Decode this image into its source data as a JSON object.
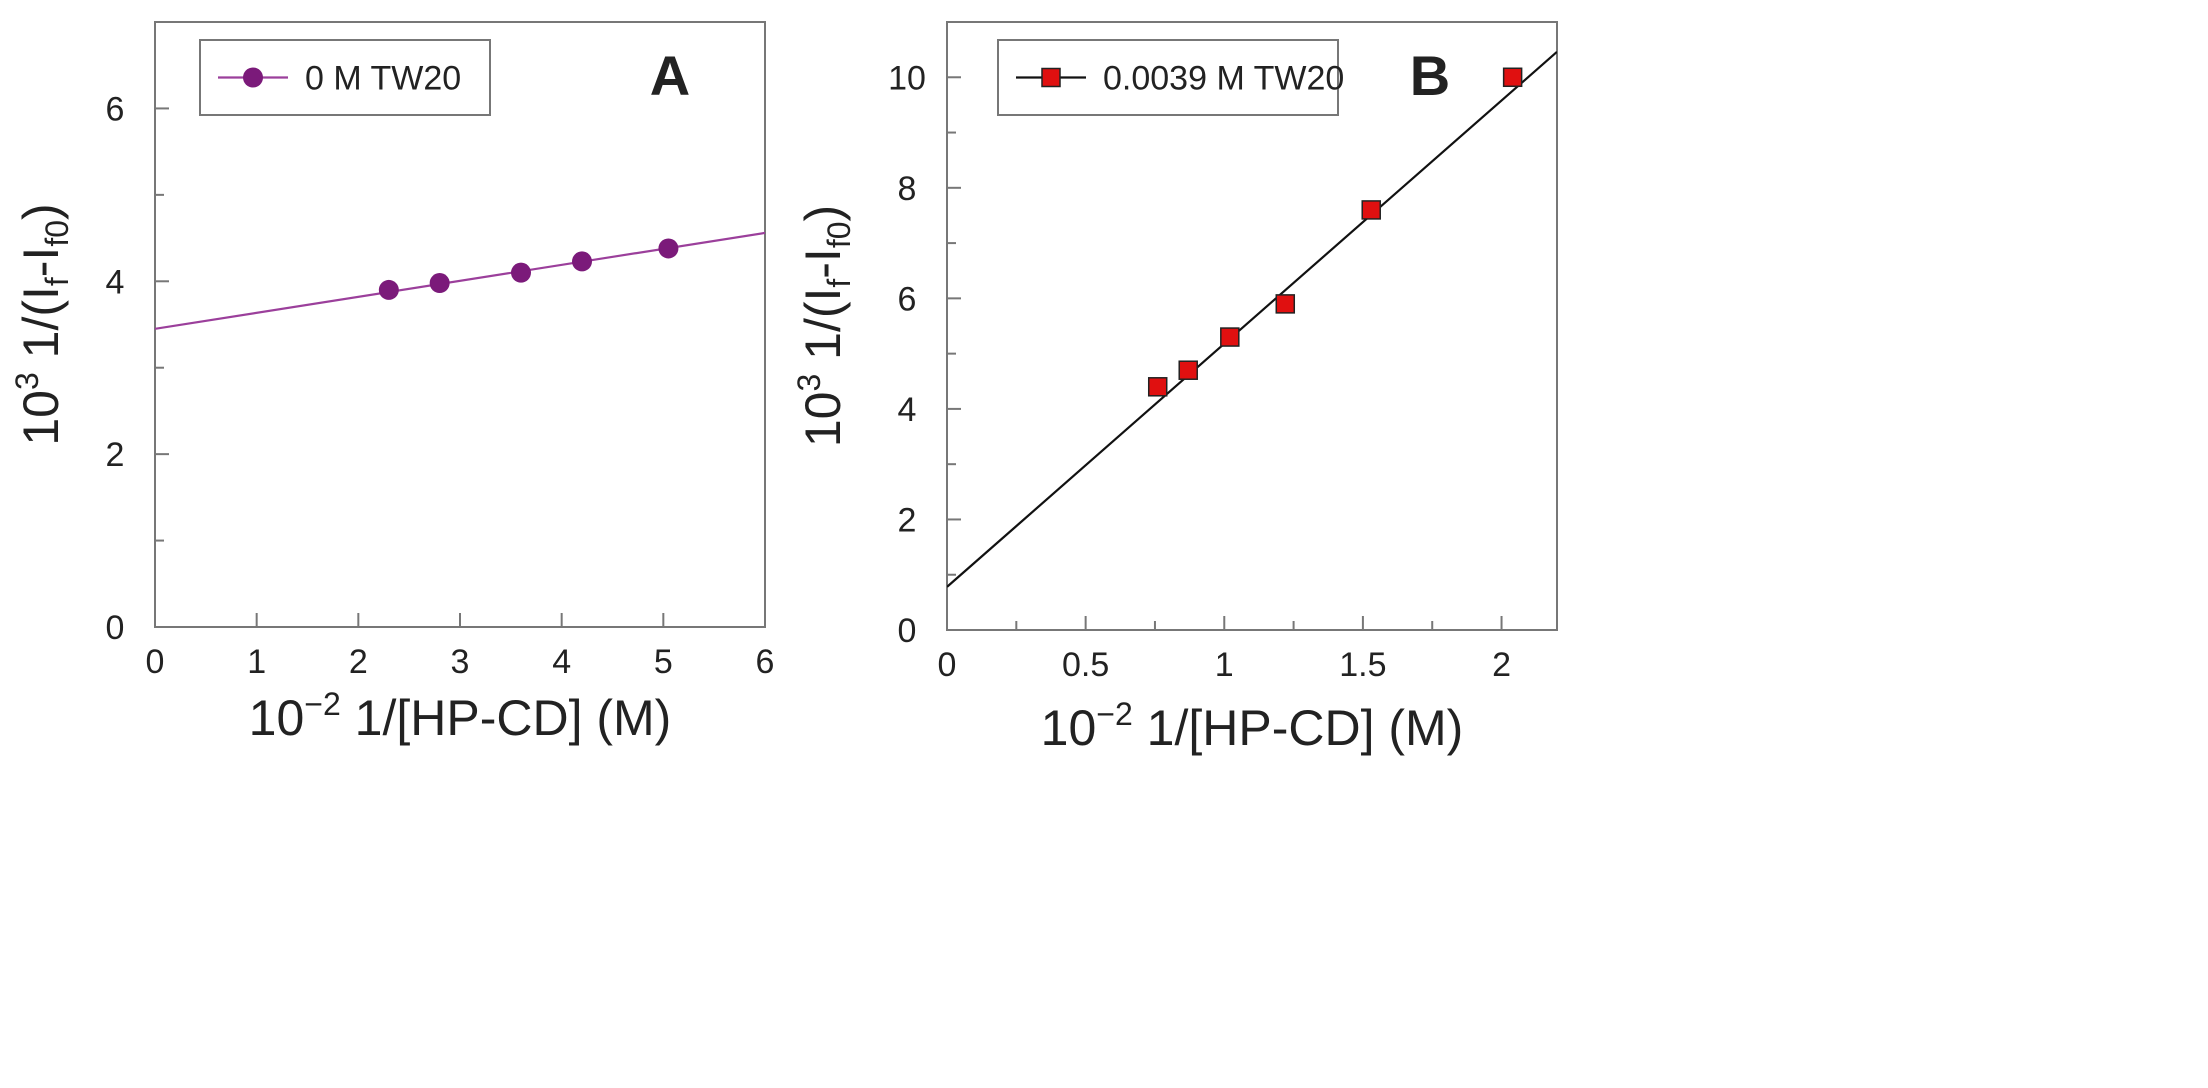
{
  "chart_data": [
    {
      "type": "scatter",
      "panel_label": "A",
      "xlim": [
        0,
        6
      ],
      "ylim": [
        0,
        7
      ],
      "xticks": [
        0,
        1,
        2,
        3,
        4,
        5,
        6
      ],
      "xtick_labels": [
        "0",
        "1",
        "2",
        "3",
        "4",
        "5",
        "6"
      ],
      "xminor": [],
      "yticks": [
        0,
        2,
        4,
        6
      ],
      "ytick_labels": [
        "0",
        "2",
        "4",
        "6"
      ],
      "yminor": [
        1,
        3,
        5
      ],
      "xlabel": {
        "base": "10",
        "exp": "−2",
        "rest": " 1/[HP-CD] (M)"
      },
      "ylabel": {
        "base": "10",
        "exp": "3",
        "rest": " 1/(I",
        "sub1": "f",
        "mid": "-I",
        "sub2": "f0",
        "end": ")"
      },
      "series": [
        {
          "name": "0 M TW20",
          "marker": "circle",
          "color": "#7b1a7a",
          "x": [
            2.3,
            2.8,
            3.6,
            4.2,
            5.05
          ],
          "y": [
            3.9,
            3.98,
            4.1,
            4.23,
            4.38
          ]
        }
      ],
      "fit_line": {
        "intercept": 3.45,
        "slope": 0.185,
        "color": "#9b3f9b"
      },
      "legend_position": "top-left"
    },
    {
      "type": "scatter",
      "panel_label": "B",
      "xlim": [
        0,
        2.2
      ],
      "ylim": [
        0,
        11
      ],
      "xticks": [
        0,
        0.5,
        1,
        1.5,
        2
      ],
      "xtick_labels": [
        "0",
        "0.5",
        "1",
        "1.5",
        "2"
      ],
      "xminor": [
        0.25,
        0.75,
        1.25,
        1.75
      ],
      "yticks": [
        0,
        2,
        4,
        6,
        8,
        10
      ],
      "ytick_labels": [
        "0",
        "2",
        "4",
        "6",
        "8",
        "10"
      ],
      "yminor": [
        1,
        3,
        5,
        7,
        9
      ],
      "xlabel": {
        "base": "10",
        "exp": "−2",
        "rest": " 1/[HP-CD] (M)"
      },
      "ylabel": {
        "base": "10",
        "exp": "3",
        "rest": " 1/(I",
        "sub1": "f",
        "mid": "-I",
        "sub2": "f0",
        "end": ")"
      },
      "series": [
        {
          "name": "0.0039 M TW20",
          "marker": "square",
          "color": "#e01010",
          "x": [
            0.76,
            0.87,
            1.02,
            1.22,
            1.53,
            2.04
          ],
          "y": [
            4.4,
            4.7,
            5.3,
            5.9,
            7.6,
            10.0
          ]
        }
      ],
      "fit_line": {
        "intercept": 0.78,
        "slope": 4.4,
        "color": "#111111"
      },
      "legend_position": "top-left"
    }
  ]
}
